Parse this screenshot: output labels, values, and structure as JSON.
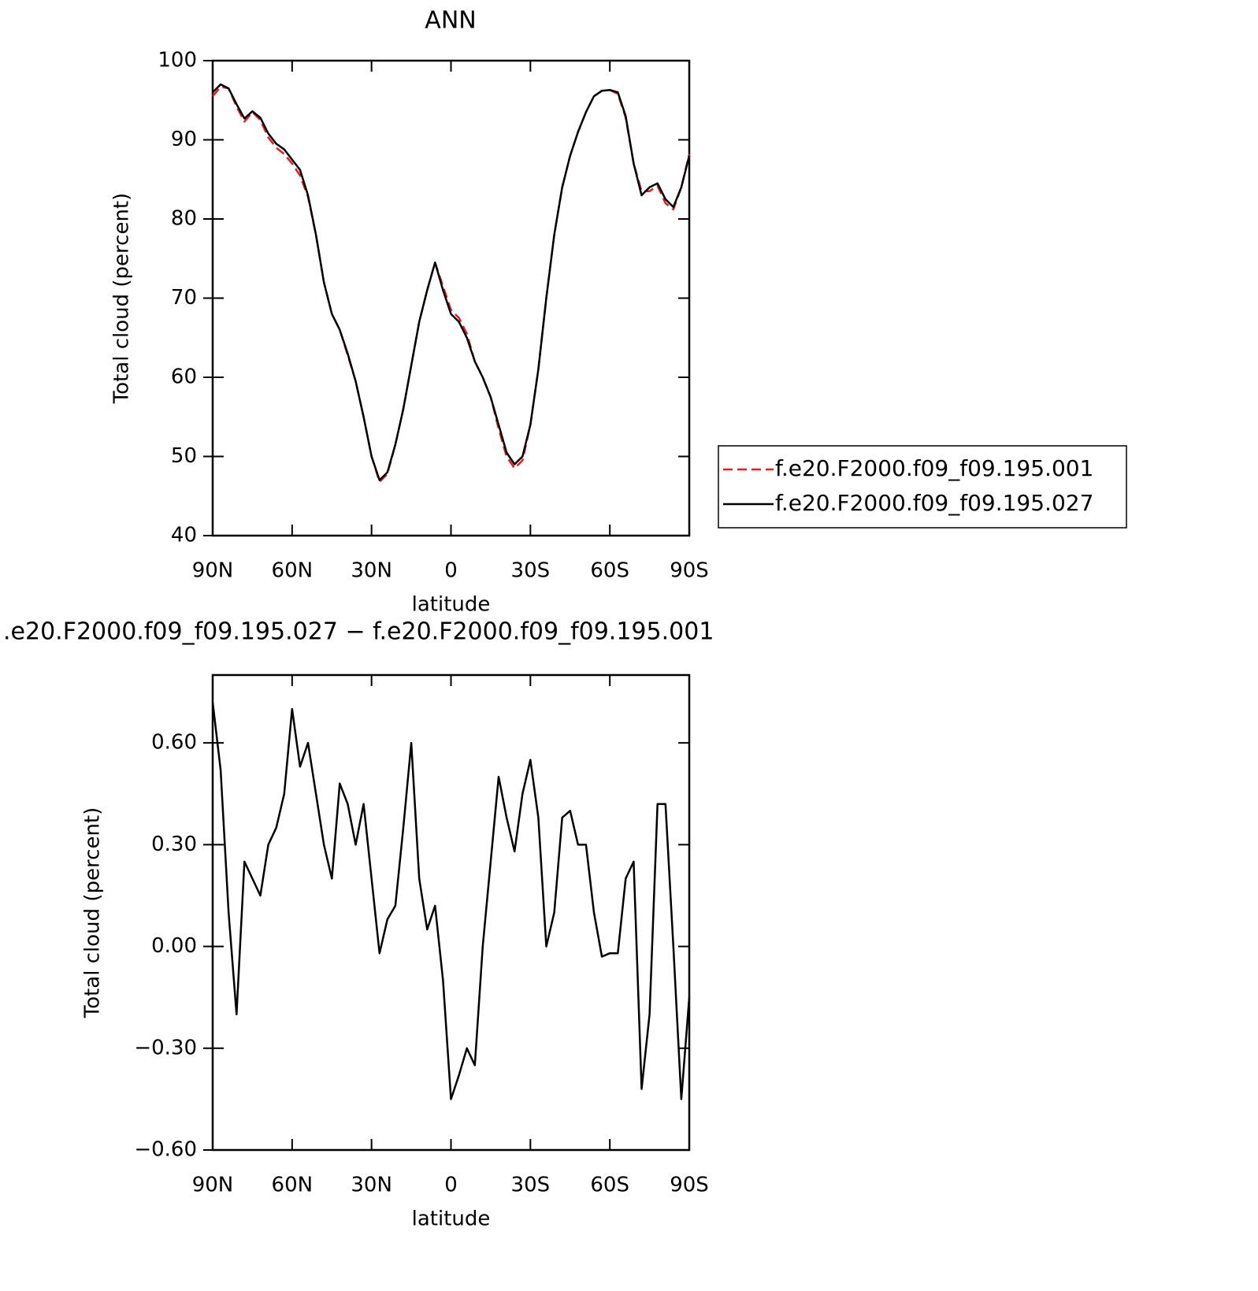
{
  "chart_data": [
    {
      "type": "line",
      "title": "ANN",
      "xlabel": "latitude",
      "ylabel": "Total cloud (percent)",
      "xlim": [
        90,
        -90
      ],
      "xticks": [
        {
          "value": 90,
          "label": "90N"
        },
        {
          "value": 60,
          "label": "60N"
        },
        {
          "value": 30,
          "label": "30N"
        },
        0,
        {
          "value": -30,
          "label": "30S"
        },
        {
          "value": -60,
          "label": "60S"
        },
        {
          "value": -90,
          "label": "90S"
        }
      ],
      "ylim": [
        40,
        100
      ],
      "yticks": [
        40,
        50,
        60,
        70,
        80,
        90,
        100
      ],
      "legend": "outside right",
      "x": [
        90,
        87,
        84,
        81,
        78,
        75,
        72,
        69,
        66,
        63,
        60,
        57,
        54,
        51,
        48,
        45,
        42,
        39,
        36,
        33,
        30,
        27,
        24,
        21,
        18,
        15,
        12,
        9,
        6,
        3,
        0,
        -3,
        -6,
        -9,
        -12,
        -15,
        -18,
        -21,
        -24,
        -27,
        -30,
        -33,
        -36,
        -39,
        -42,
        -45,
        -48,
        -51,
        -54,
        -57,
        -60,
        -63,
        -66,
        -69,
        -72,
        -75,
        -78,
        -81,
        -84,
        -87,
        -90
      ],
      "series": [
        {
          "name": "f.e20.F2000.f09_f09.195.001",
          "color": "#e8191f",
          "dash": true,
          "values": [
            95.5,
            96.7,
            96.5,
            94.2,
            92.3,
            93.5,
            92.5,
            90.3,
            89.0,
            88.2,
            87.0,
            85.5,
            82.8,
            78.0,
            72.0,
            68.0,
            66.0,
            62.8,
            59.5,
            55.0,
            50.0,
            46.8,
            47.8,
            51.5,
            56.0,
            61.5,
            67.0,
            71.0,
            74.5,
            71.5,
            68.5,
            67.5,
            65.5,
            62.0,
            60.0,
            57.5,
            53.5,
            50.0,
            48.5,
            49.5,
            54.0,
            61.0,
            70.0,
            78.0,
            84.0,
            88.0,
            91.0,
            93.5,
            95.5,
            96.2,
            96.3,
            95.8,
            92.8,
            87.0,
            83.5,
            83.5,
            84.2,
            82.0,
            81.2,
            84.0,
            88.2
          ]
        },
        {
          "name": "f.e20.F2000.f09_f09.195.027",
          "color": "#000000",
          "dash": false,
          "values": [
            96.0,
            97.0,
            96.5,
            94.5,
            92.7,
            93.6,
            92.8,
            90.8,
            89.5,
            88.8,
            87.5,
            86.2,
            83.0,
            78.0,
            72.0,
            68.0,
            66.0,
            63.0,
            59.5,
            55.0,
            50.0,
            47.0,
            48.0,
            51.5,
            56.0,
            61.5,
            67.0,
            71.0,
            74.5,
            71.0,
            68.0,
            67.0,
            65.0,
            62.0,
            60.0,
            57.5,
            54.0,
            50.5,
            49.0,
            50.0,
            54.0,
            61.0,
            70.0,
            78.0,
            84.0,
            88.0,
            91.0,
            93.5,
            95.5,
            96.2,
            96.3,
            96.0,
            93.0,
            87.0,
            83.0,
            84.0,
            84.5,
            82.5,
            81.5,
            84.0,
            88.0
          ]
        }
      ]
    },
    {
      "type": "line",
      "title": ".e20.F2000.f09_f09.195.027 − f.e20.F2000.f09_f09.195.001",
      "xlabel": "latitude",
      "ylabel": "Total cloud (percent)",
      "xlim": [
        90,
        -90
      ],
      "xticks": [
        {
          "value": 90,
          "label": "90N"
        },
        {
          "value": 60,
          "label": "60N"
        },
        {
          "value": 30,
          "label": "30N"
        },
        0,
        {
          "value": -30,
          "label": "30S"
        },
        {
          "value": -60,
          "label": "60S"
        },
        {
          "value": -90,
          "label": "90S"
        }
      ],
      "ylim": [
        -0.6,
        0.8
      ],
      "yticks": [
        {
          "value": -0.6,
          "label": "−0.60"
        },
        {
          "value": -0.3,
          "label": "−0.30"
        },
        {
          "value": 0,
          "label": "0.00"
        },
        {
          "value": 0.3,
          "label": "0.30"
        },
        {
          "value": 0.6,
          "label": "0.60"
        }
      ],
      "x": [
        90,
        87,
        84,
        81,
        78,
        75,
        72,
        69,
        66,
        63,
        60,
        57,
        54,
        51,
        48,
        45,
        42,
        39,
        36,
        33,
        30,
        27,
        24,
        21,
        18,
        15,
        12,
        9,
        6,
        3,
        0,
        -3,
        -6,
        -9,
        -12,
        -15,
        -18,
        -21,
        -24,
        -27,
        -30,
        -33,
        -36,
        -39,
        -42,
        -45,
        -48,
        -51,
        -54,
        -57,
        -60,
        -63,
        -66,
        -69,
        -72,
        -75,
        -78,
        -81,
        -84,
        -87,
        -90
      ],
      "series": [
        {
          "color": "#000000",
          "dash": false,
          "values": [
            0.72,
            0.52,
            0.1,
            -0.2,
            0.25,
            0.2,
            0.15,
            0.3,
            0.35,
            0.45,
            0.7,
            0.53,
            0.6,
            0.45,
            0.3,
            0.2,
            0.48,
            0.42,
            0.3,
            0.42,
            0.2,
            -0.02,
            0.08,
            0.12,
            0.35,
            0.6,
            0.2,
            0.05,
            0.12,
            -0.1,
            -0.45,
            -0.38,
            -0.3,
            -0.35,
            0.0,
            0.25,
            0.5,
            0.38,
            0.28,
            0.45,
            0.55,
            0.38,
            0.0,
            0.1,
            0.38,
            0.4,
            0.3,
            0.3,
            0.1,
            -0.03,
            -0.02,
            -0.02,
            0.2,
            0.25,
            -0.42,
            -0.2,
            0.42,
            0.42,
            0.0,
            -0.45,
            -0.15
          ]
        }
      ]
    }
  ]
}
